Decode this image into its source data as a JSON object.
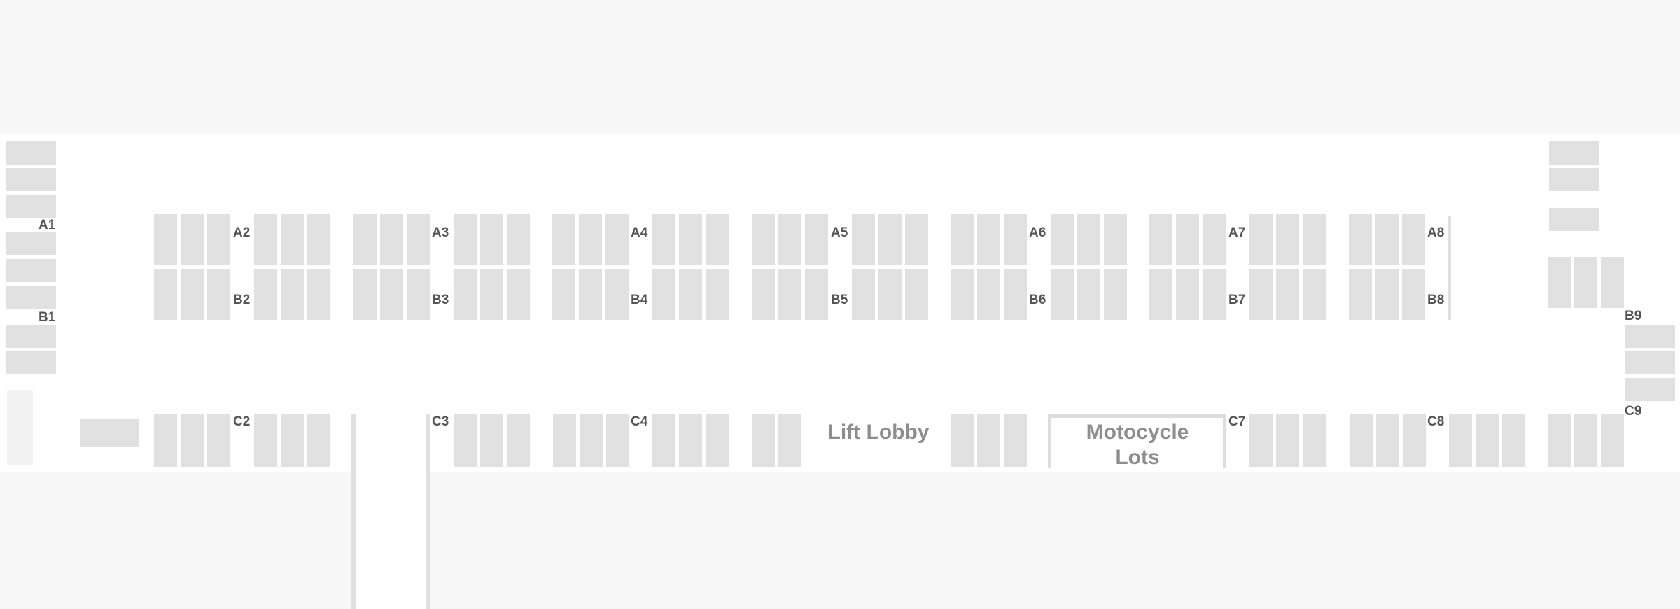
{
  "map": {
    "colors": {
      "background": "#f7f7f7",
      "floor": "#ffffff",
      "slot": "#e1e1e1",
      "label": "#555555",
      "area_label": "#8e8e8e"
    },
    "zone_labels": {
      "A1": "A1",
      "B1": "B1",
      "A2": "A2",
      "A3": "A3",
      "A4": "A4",
      "A5": "A5",
      "A6": "A6",
      "A7": "A7",
      "A8": "A8",
      "B2": "B2",
      "B3": "B3",
      "B4": "B4",
      "B5": "B5",
      "B6": "B6",
      "B7": "B7",
      "B8": "B8",
      "B9": "B9",
      "C2": "C2",
      "C3": "C3",
      "C4": "C4",
      "C7": "C7",
      "C8": "C8",
      "C9": "C9"
    },
    "areas": {
      "lift_lobby": "Lift Lobby",
      "motorcycle_lots": "Motocycle\nLots"
    }
  }
}
